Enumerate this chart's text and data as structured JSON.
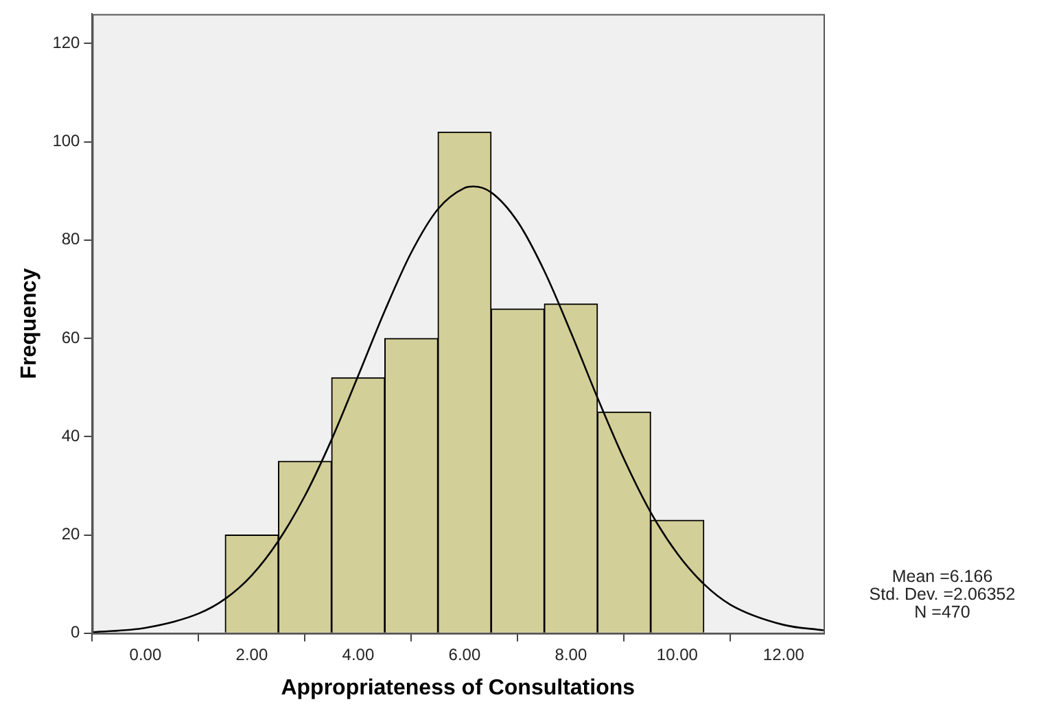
{
  "chart_data": {
    "type": "histogram",
    "xlabel": "Appropriateness of Consultations",
    "ylabel": "Frequency",
    "bins": [
      1.5,
      2.5,
      3.5,
      4.5,
      5.5,
      6.5,
      7.5,
      8.5,
      9.5,
      10.5
    ],
    "values": [
      20,
      35,
      52,
      60,
      102,
      66,
      67,
      45,
      23
    ],
    "color": "#d3cf98",
    "series": [
      {
        "type": "line",
        "color": "#000000",
        "x": [
          -1,
          0,
          1,
          1.5,
          2,
          2.5,
          3,
          3.5,
          4,
          4.5,
          5,
          5.5,
          6,
          6.166,
          6.5,
          7,
          7.5,
          8,
          8.5,
          9,
          9.5,
          10,
          10.5,
          11,
          12,
          12.75
        ],
        "values": [
          0.2,
          1.1,
          4,
          7,
          11.8,
          18.8,
          28,
          39.4,
          52.4,
          65.6,
          77.5,
          86.3,
          90.6,
          90.9,
          89.7,
          83.7,
          73.7,
          61.2,
          47.9,
          35.4,
          24.6,
          16.2,
          10,
          5.8,
          1.7,
          0.6
        ]
      }
    ],
    "xlim": [
      -1,
      12.75
    ],
    "xticks": [
      {
        "value": 0,
        "label": "0.00"
      },
      {
        "value": 2,
        "label": "2.00"
      },
      {
        "value": 4,
        "label": "4.00"
      },
      {
        "value": 6,
        "label": "6.00"
      },
      {
        "value": 8,
        "label": "8.00"
      },
      {
        "value": 10,
        "label": "10.00"
      },
      {
        "value": 12,
        "label": "12.00"
      }
    ],
    "ylim": [
      0,
      126
    ],
    "yticks": [
      0,
      20,
      40,
      60,
      80,
      100,
      120
    ],
    "grid": false,
    "legend": false,
    "annotations": [
      "Mean =6.166",
      "Std. Dev. =2.06352",
      "N =470"
    ]
  }
}
